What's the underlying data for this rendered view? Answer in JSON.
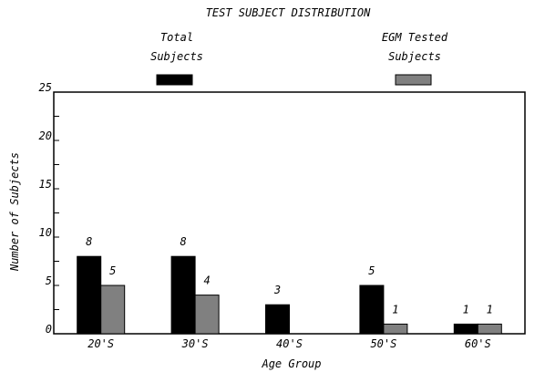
{
  "chart_data": {
    "type": "bar",
    "title": "TEST SUBJECT  DISTRIBUTION",
    "xlabel": "Age Group",
    "ylabel": "Number  of Subjects",
    "ylim": [
      0,
      25
    ],
    "yticks": [
      0,
      5,
      10,
      15,
      20,
      25
    ],
    "ytick_labels": [
      "0",
      "5",
      "10",
      "15",
      "20",
      "25"
    ],
    "minor_step": 2.5,
    "grid": false,
    "legend_placement": "top",
    "categories": [
      "20'S",
      "30'S",
      "40'S",
      "50'S",
      "60'S"
    ],
    "series": [
      {
        "name_lines": [
          "Total",
          "Subjects"
        ],
        "color": "#000000",
        "values": [
          8,
          8,
          3,
          5,
          1
        ],
        "labels": [
          "8",
          "8",
          "3",
          "5",
          "1"
        ]
      },
      {
        "name_lines": [
          "EGM  Tested",
          "Subjects"
        ],
        "color": "#808080",
        "values": [
          5,
          4,
          null,
          1,
          1
        ],
        "labels": [
          "5",
          "4",
          "",
          "1",
          "1"
        ]
      }
    ]
  }
}
